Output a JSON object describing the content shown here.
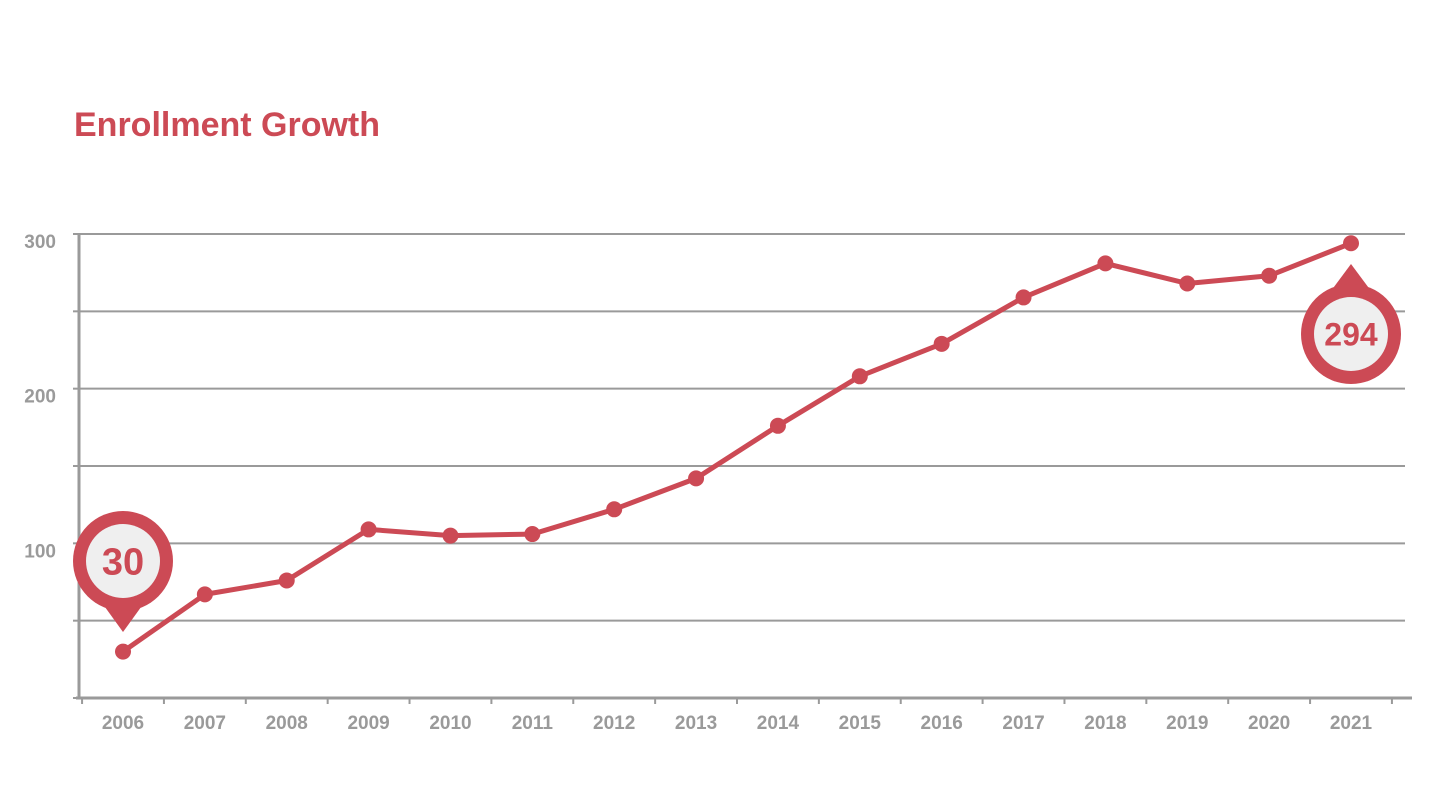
{
  "chart_data": {
    "type": "line",
    "title": "Enrollment Growth",
    "xlabel": "",
    "ylabel": "",
    "categories": [
      "2006",
      "2007",
      "2008",
      "2009",
      "2010",
      "2011",
      "2012",
      "2013",
      "2014",
      "2015",
      "2016",
      "2017",
      "2018",
      "2019",
      "2020",
      "2021"
    ],
    "series": [
      {
        "values": [
          30,
          67,
          76,
          109,
          105,
          106,
          122,
          142,
          176,
          208,
          229,
          259,
          281,
          268,
          273,
          294
        ]
      }
    ],
    "ylim": [
      0,
      300
    ],
    "yticks": [
      0,
      50,
      100,
      150,
      200,
      250,
      300
    ],
    "ytick_labels": [
      "",
      "",
      "100",
      "",
      "200",
      "",
      "300"
    ],
    "grid": true,
    "annotations": [
      {
        "category": "2006",
        "text": "30"
      },
      {
        "category": "2021",
        "text": "294"
      }
    ],
    "colors": {
      "line": "#cc4a55",
      "grid": "#9a9a9a",
      "tick_text": "#9a9a9a",
      "pin_fill": "#cc4a55",
      "pin_inner": "#efefef"
    }
  }
}
